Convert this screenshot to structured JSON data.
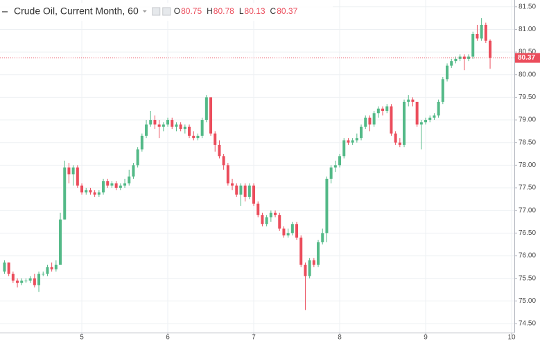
{
  "chart_data": {
    "type": "candlestick",
    "title": "Crude Oil, Current Month, 60",
    "header_fields": [
      {
        "label": "O",
        "value": 80.75
      },
      {
        "label": "H",
        "value": 80.78
      },
      {
        "label": "L",
        "value": 80.13
      },
      {
        "label": "C",
        "value": 80.37
      }
    ],
    "last_price": 80.37,
    "up_color": "#53b987",
    "down_color": "#eb4d5c",
    "grid": true,
    "xlim": [
      4.048,
      10.032
    ],
    "xticks": [
      5,
      6,
      7,
      8,
      9,
      10
    ],
    "ylim": [
      74.3,
      81.65
    ],
    "yticks": [
      {
        "value": 74.5,
        "label": "74.50"
      },
      {
        "value": 75,
        "label": "75.00"
      },
      {
        "value": 75.5,
        "label": "75.50"
      },
      {
        "value": 76,
        "label": "76.00"
      },
      {
        "value": 76.5,
        "label": "76.50"
      },
      {
        "value": 77,
        "label": "77.00"
      },
      {
        "value": 77.5,
        "label": "77.50"
      },
      {
        "value": 78,
        "label": "78.00"
      },
      {
        "value": 78.5,
        "label": "78.50"
      },
      {
        "value": 79,
        "label": "79.00"
      },
      {
        "value": 79.5,
        "label": "79.50"
      },
      {
        "value": 80,
        "label": "80.00"
      },
      {
        "value": 80.5,
        "label": "80.50"
      },
      {
        "value": 81,
        "label": "81.00"
      },
      {
        "value": 81.5,
        "label": "81.50"
      }
    ],
    "x": [
      4.1,
      4.15,
      4.2,
      4.25,
      4.3,
      4.35,
      4.4,
      4.45,
      4.5,
      4.55,
      4.6,
      4.65,
      4.7,
      4.75,
      4.8,
      4.85,
      4.9,
      4.95,
      5,
      5.05,
      5.1,
      5.15,
      5.2,
      5.25,
      5.3,
      5.35,
      5.4,
      5.45,
      5.5,
      5.55,
      5.6,
      5.65,
      5.7,
      5.75,
      5.8,
      5.85,
      5.9,
      5.95,
      6,
      6.05,
      6.1,
      6.15,
      6.2,
      6.25,
      6.3,
      6.35,
      6.4,
      6.45,
      6.5,
      6.55,
      6.6,
      6.65,
      6.7,
      6.75,
      6.8,
      6.85,
      6.9,
      6.95,
      7,
      7.05,
      7.1,
      7.15,
      7.2,
      7.25,
      7.3,
      7.35,
      7.4,
      7.45,
      7.5,
      7.55,
      7.6,
      7.65,
      7.7,
      7.75,
      7.8,
      7.85,
      7.9,
      7.95,
      8,
      8.05,
      8.1,
      8.15,
      8.2,
      8.25,
      8.3,
      8.35,
      8.4,
      8.45,
      8.5,
      8.55,
      8.6,
      8.65,
      8.7,
      8.75,
      8.8,
      8.85,
      8.9,
      8.95,
      9,
      9.05,
      9.1,
      9.15,
      9.2,
      9.25,
      9.3,
      9.35,
      9.4,
      9.45,
      9.5,
      9.55,
      9.6,
      9.65,
      9.7,
      9.75
    ],
    "open": [
      75.65,
      75.85,
      75.6,
      75.45,
      75.4,
      75.45,
      75.45,
      75.5,
      75.35,
      75.6,
      75.6,
      75.75,
      75.7,
      75.8,
      76.8,
      77.95,
      77.8,
      77.95,
      77.55,
      77.4,
      77.45,
      77.4,
      77.35,
      77.4,
      77.65,
      77.55,
      77.6,
      77.5,
      77.55,
      77.6,
      77.75,
      78.0,
      78.35,
      78.65,
      78.9,
      79.0,
      78.9,
      78.85,
      78.9,
      79.0,
      78.85,
      78.9,
      78.8,
      78.85,
      78.65,
      78.6,
      78.65,
      79.0,
      79.5,
      78.7,
      78.45,
      78.2,
      78.0,
      77.6,
      77.55,
      77.35,
      77.55,
      77.3,
      77.55,
      77.15,
      76.9,
      76.7,
      76.85,
      76.95,
      76.9,
      76.6,
      76.45,
      76.5,
      76.7,
      76.4,
      75.8,
      75.55,
      75.9,
      75.8,
      76.3,
      76.5,
      77.7,
      77.95,
      78.0,
      78.2,
      78.55,
      78.5,
      78.55,
      78.6,
      78.85,
      79.05,
      78.9,
      79.15,
      79.25,
      79.2,
      79.3,
      78.7,
      78.5,
      78.45,
      79.4,
      79.45,
      79.4,
      78.9,
      78.95,
      79.0,
      79.05,
      79.1,
      79.4,
      79.9,
      80.2,
      80.3,
      80.35,
      80.4,
      80.35,
      80.4,
      80.9,
      80.8,
      81.1,
      80.75
    ],
    "high": [
      75.9,
      75.85,
      75.65,
      75.5,
      75.5,
      75.5,
      75.55,
      75.6,
      75.65,
      75.65,
      75.8,
      75.85,
      75.9,
      76.95,
      78.1,
      78.05,
      78.0,
      78.0,
      77.6,
      77.5,
      77.5,
      77.45,
      77.45,
      77.7,
      77.7,
      77.65,
      77.65,
      77.6,
      77.7,
      77.9,
      78.05,
      78.4,
      78.7,
      79.0,
      79.2,
      79.1,
      79.0,
      78.95,
      79.05,
      79.05,
      78.95,
      78.95,
      78.9,
      78.9,
      78.75,
      78.7,
      79.05,
      79.55,
      79.5,
      78.75,
      78.55,
      78.25,
      78.05,
      77.7,
      77.6,
      77.6,
      77.6,
      77.6,
      77.6,
      77.2,
      76.95,
      76.9,
      77.0,
      77.0,
      76.95,
      76.65,
      76.6,
      76.75,
      76.75,
      76.45,
      75.85,
      75.95,
      75.95,
      76.35,
      76.6,
      77.75,
      78.0,
      78.1,
      78.25,
      78.6,
      78.6,
      78.6,
      78.7,
      78.9,
      79.1,
      79.1,
      79.2,
      79.3,
      79.3,
      79.35,
      79.35,
      78.75,
      78.6,
      79.45,
      79.55,
      79.5,
      79.4,
      79.0,
      79.05,
      79.1,
      79.15,
      79.45,
      79.95,
      80.25,
      80.35,
      80.4,
      80.45,
      80.45,
      80.45,
      80.95,
      81.1,
      81.25,
      81.15,
      80.78
    ],
    "low": [
      75.6,
      75.55,
      75.4,
      75.3,
      75.35,
      75.4,
      75.4,
      75.3,
      75.2,
      75.55,
      75.55,
      75.65,
      75.65,
      75.8,
      76.8,
      77.6,
      77.55,
      77.5,
      77.35,
      77.35,
      77.35,
      77.3,
      77.3,
      77.35,
      77.5,
      77.5,
      77.45,
      77.45,
      77.5,
      77.55,
      77.7,
      77.95,
      78.3,
      78.6,
      78.85,
      78.8,
      78.6,
      78.75,
      78.85,
      78.8,
      78.75,
      78.75,
      78.7,
      78.6,
      78.55,
      78.55,
      78.6,
      78.95,
      78.65,
      78.3,
      78.15,
      77.9,
      77.55,
      77.45,
      77.3,
      77.1,
      77.2,
      77.25,
      77.1,
      76.85,
      76.65,
      76.65,
      76.75,
      76.85,
      76.55,
      76.4,
      76.4,
      76.45,
      76.35,
      75.75,
      74.8,
      75.5,
      75.75,
      75.75,
      76.25,
      76.3,
      77.6,
      77.85,
      77.95,
      78.15,
      78.45,
      78.45,
      78.5,
      78.55,
      78.8,
      78.75,
      78.85,
      79.05,
      79.1,
      79.15,
      78.65,
      78.45,
      78.4,
      78.4,
      79.3,
      79.3,
      78.85,
      78.35,
      78.9,
      78.95,
      79.0,
      79.05,
      79.35,
      79.85,
      80.15,
      80.25,
      80.3,
      80.1,
      80.3,
      80.35,
      80.75,
      80.75,
      80.7,
      80.13
    ],
    "close": [
      75.85,
      75.6,
      75.45,
      75.4,
      75.45,
      75.45,
      75.5,
      75.35,
      75.6,
      75.6,
      75.75,
      75.7,
      75.8,
      76.8,
      77.95,
      77.8,
      77.95,
      77.55,
      77.4,
      77.45,
      77.4,
      77.35,
      77.4,
      77.65,
      77.55,
      77.6,
      77.5,
      77.55,
      77.6,
      77.75,
      78.0,
      78.35,
      78.65,
      78.9,
      79.0,
      78.9,
      78.85,
      78.9,
      79.0,
      78.85,
      78.9,
      78.8,
      78.85,
      78.65,
      78.6,
      78.65,
      79.0,
      79.5,
      78.7,
      78.45,
      78.2,
      78.0,
      77.6,
      77.55,
      77.35,
      77.55,
      77.3,
      77.55,
      77.15,
      76.9,
      76.7,
      76.85,
      76.95,
      76.9,
      76.6,
      76.45,
      76.5,
      76.7,
      76.4,
      75.8,
      75.55,
      75.9,
      75.8,
      76.3,
      76.5,
      77.7,
      77.95,
      78.0,
      78.2,
      78.55,
      78.5,
      78.55,
      78.6,
      78.85,
      79.05,
      78.9,
      79.15,
      79.25,
      79.2,
      79.3,
      78.7,
      78.5,
      78.45,
      79.4,
      79.45,
      79.4,
      78.9,
      78.95,
      79.0,
      79.05,
      79.1,
      79.4,
      79.9,
      80.2,
      80.3,
      80.35,
      80.4,
      80.35,
      80.4,
      80.9,
      80.8,
      81.1,
      80.75,
      80.37
    ]
  }
}
